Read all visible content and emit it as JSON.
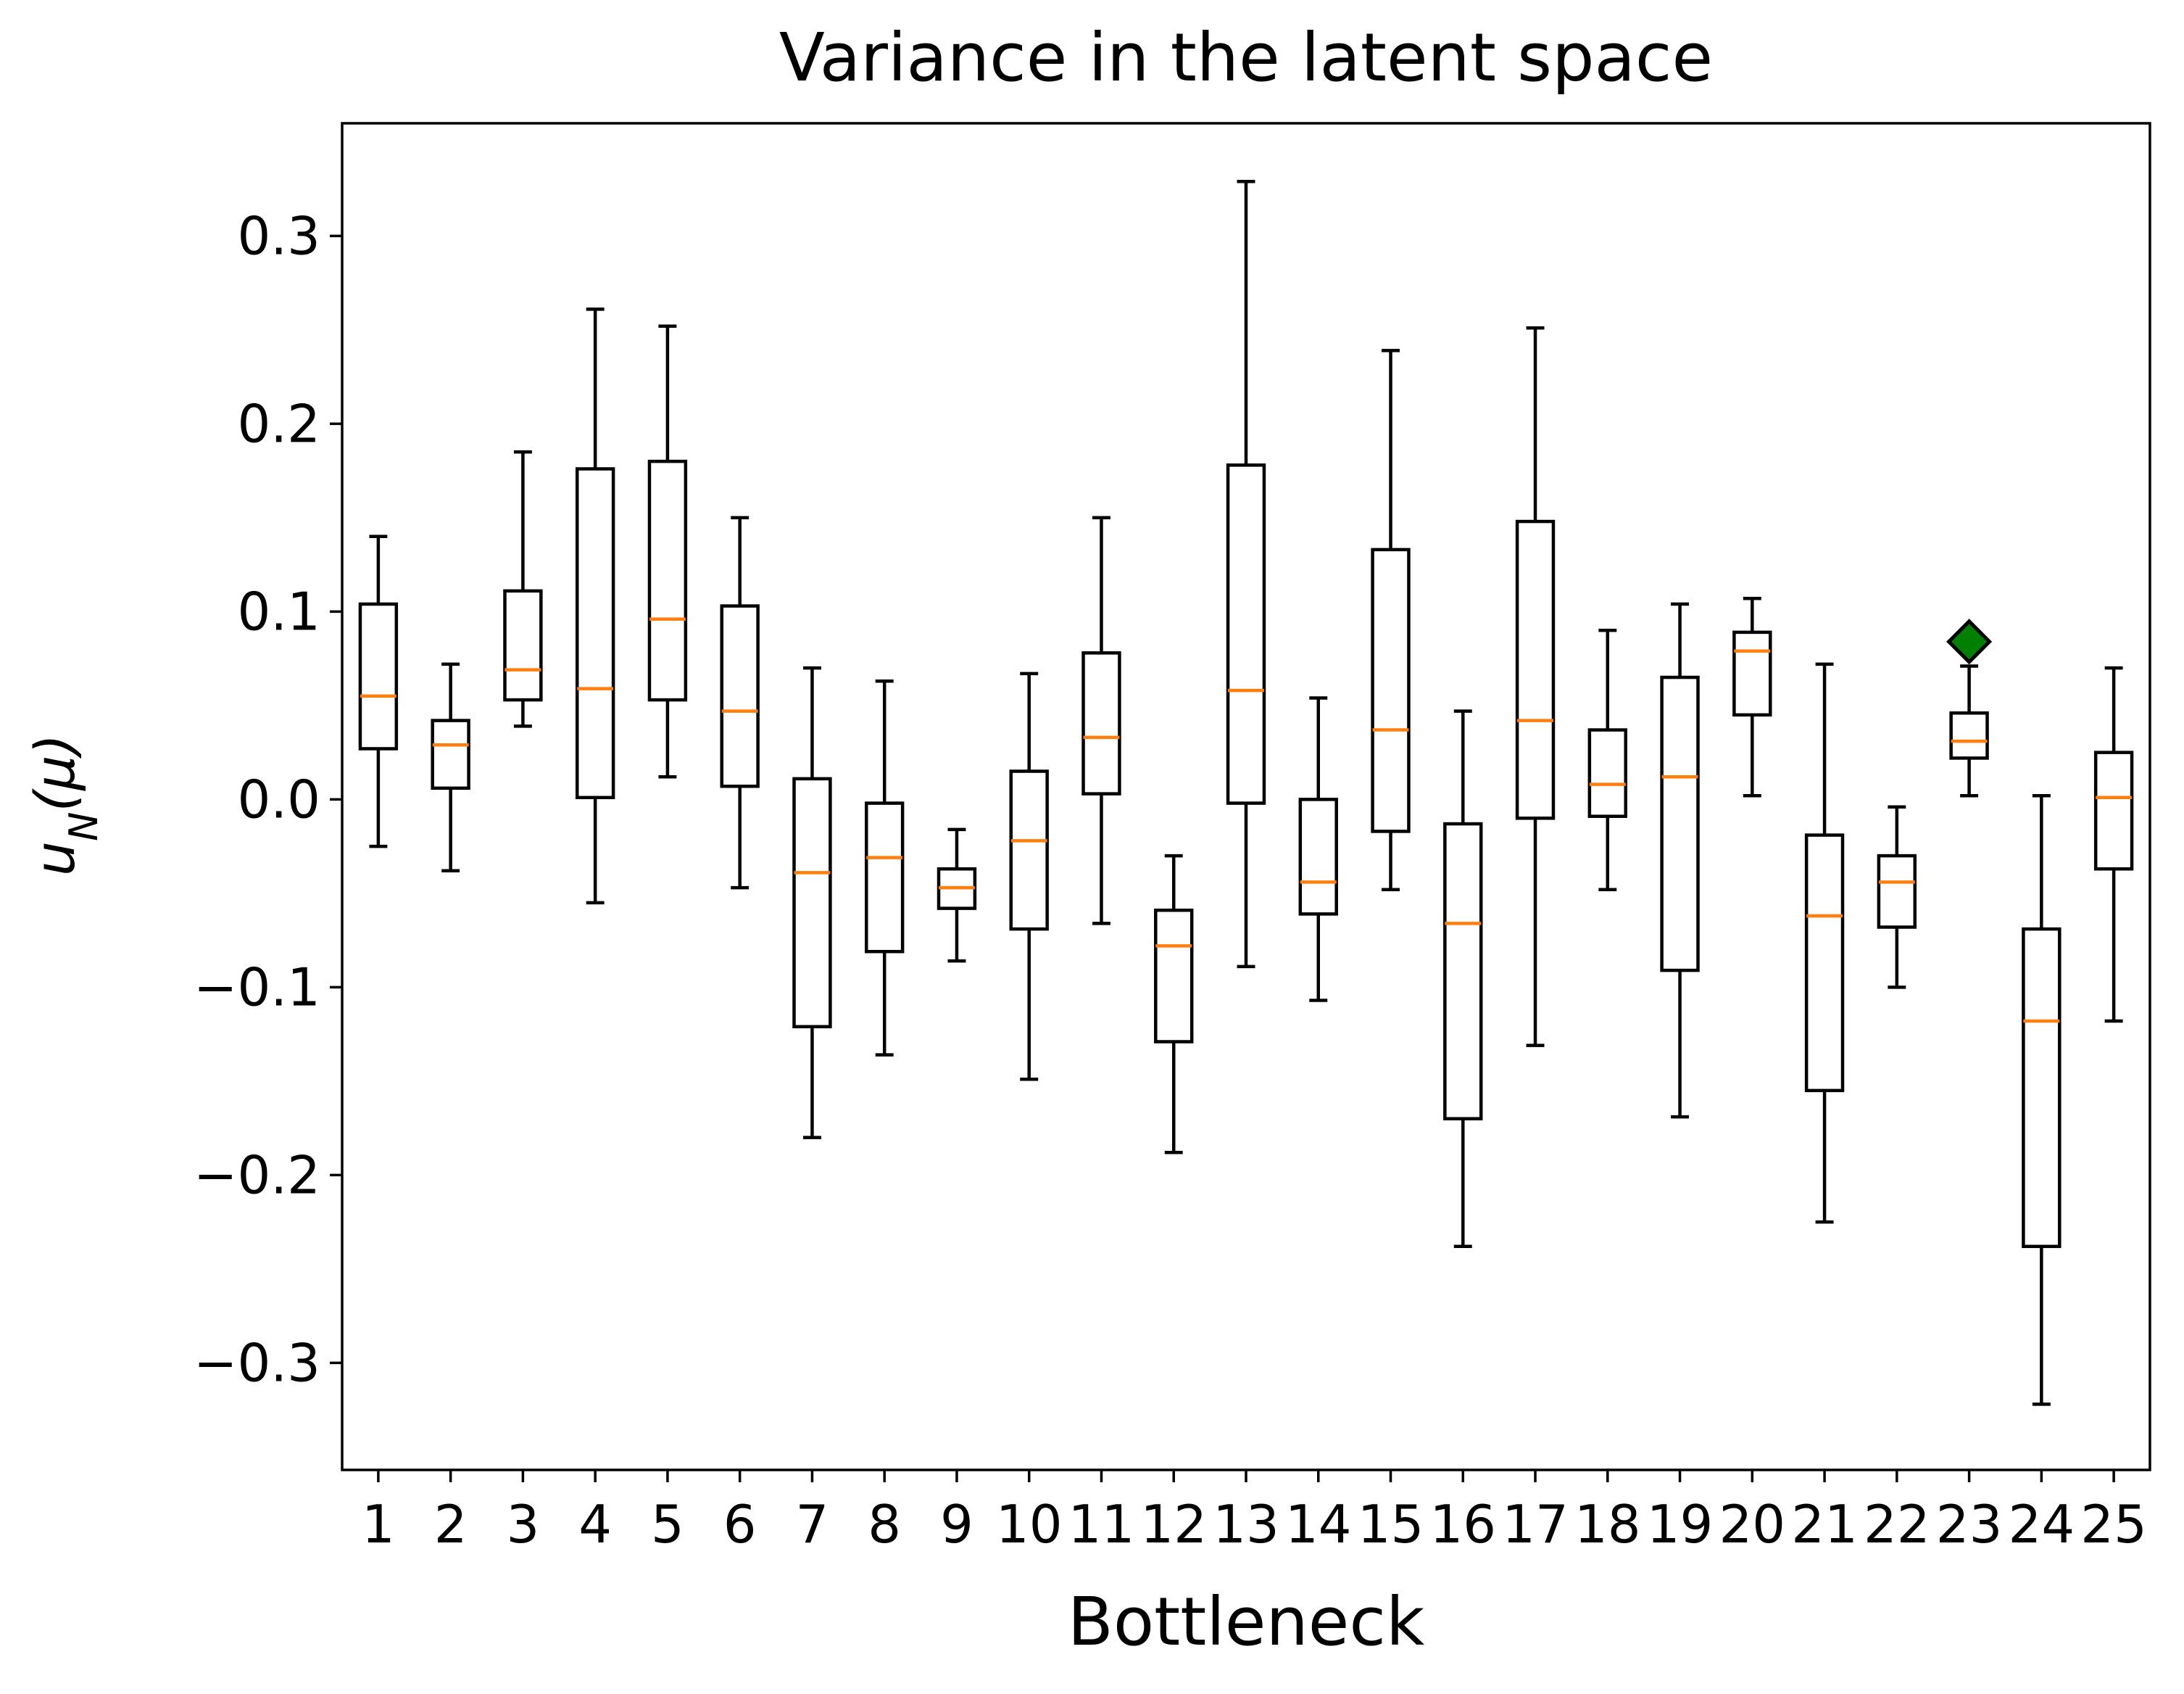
{
  "chart_data": {
    "type": "box",
    "title": "Variance in the latent space",
    "xlabel": "Bottleneck",
    "ylabel": "u_N(μ)",
    "ylabel_main": "u",
    "ylabel_sub": "N",
    "ylabel_rest": "(μ)",
    "ylim": [
      -0.357,
      0.36
    ],
    "yticks": [
      {
        "value": 0.3,
        "label": "0.3"
      },
      {
        "value": 0.2,
        "label": "0.2"
      },
      {
        "value": 0.1,
        "label": "0.1"
      },
      {
        "value": 0.0,
        "label": "0.0"
      },
      {
        "value": -0.1,
        "label": "−0.1"
      },
      {
        "value": -0.2,
        "label": "−0.2"
      },
      {
        "value": -0.3,
        "label": "−0.3"
      }
    ],
    "categories": [
      "1",
      "2",
      "3",
      "4",
      "5",
      "6",
      "7",
      "8",
      "9",
      "10",
      "11",
      "12",
      "13",
      "14",
      "15",
      "16",
      "17",
      "18",
      "19",
      "20",
      "21",
      "22",
      "23",
      "24",
      "25"
    ],
    "boxes": [
      {
        "whislo": -0.025,
        "q1": 0.027,
        "med": 0.055,
        "q3": 0.104,
        "whishi": 0.14
      },
      {
        "whislo": -0.038,
        "q1": 0.006,
        "med": 0.029,
        "q3": 0.042,
        "whishi": 0.072
      },
      {
        "whislo": 0.039,
        "q1": 0.053,
        "med": 0.069,
        "q3": 0.111,
        "whishi": 0.185
      },
      {
        "whislo": -0.055,
        "q1": 0.001,
        "med": 0.059,
        "q3": 0.176,
        "whishi": 0.261
      },
      {
        "whislo": 0.012,
        "q1": 0.053,
        "med": 0.096,
        "q3": 0.18,
        "whishi": 0.252
      },
      {
        "whislo": -0.047,
        "q1": 0.007,
        "med": 0.047,
        "q3": 0.103,
        "whishi": 0.15
      },
      {
        "whislo": -0.18,
        "q1": -0.121,
        "med": -0.039,
        "q3": 0.011,
        "whishi": 0.07
      },
      {
        "whislo": -0.136,
        "q1": -0.081,
        "med": -0.031,
        "q3": -0.002,
        "whishi": 0.063
      },
      {
        "whislo": -0.086,
        "q1": -0.058,
        "med": -0.047,
        "q3": -0.037,
        "whishi": -0.016
      },
      {
        "whislo": -0.149,
        "q1": -0.069,
        "med": -0.022,
        "q3": 0.015,
        "whishi": 0.067
      },
      {
        "whislo": -0.066,
        "q1": 0.003,
        "med": 0.033,
        "q3": 0.078,
        "whishi": 0.15
      },
      {
        "whislo": -0.188,
        "q1": -0.129,
        "med": -0.078,
        "q3": -0.059,
        "whishi": -0.03
      },
      {
        "whislo": -0.089,
        "q1": -0.002,
        "med": 0.058,
        "q3": 0.178,
        "whishi": 0.329
      },
      {
        "whislo": -0.107,
        "q1": -0.061,
        "med": -0.044,
        "q3": 0.0,
        "whishi": 0.054
      },
      {
        "whislo": -0.048,
        "q1": -0.017,
        "med": 0.037,
        "q3": 0.133,
        "whishi": 0.239
      },
      {
        "whislo": -0.238,
        "q1": -0.17,
        "med": -0.066,
        "q3": -0.013,
        "whishi": 0.047
      },
      {
        "whislo": -0.131,
        "q1": -0.01,
        "med": 0.042,
        "q3": 0.148,
        "whishi": 0.251
      },
      {
        "whislo": -0.048,
        "q1": -0.009,
        "med": 0.008,
        "q3": 0.037,
        "whishi": 0.09
      },
      {
        "whislo": -0.169,
        "q1": -0.091,
        "med": 0.012,
        "q3": 0.065,
        "whishi": 0.104
      },
      {
        "whislo": 0.002,
        "q1": 0.045,
        "med": 0.079,
        "q3": 0.089,
        "whishi": 0.107
      },
      {
        "whislo": -0.225,
        "q1": -0.155,
        "med": -0.062,
        "q3": -0.019,
        "whishi": 0.072
      },
      {
        "whislo": -0.1,
        "q1": -0.068,
        "med": -0.044,
        "q3": -0.03,
        "whishi": -0.004
      },
      {
        "whislo": 0.002,
        "q1": 0.022,
        "med": 0.031,
        "q3": 0.046,
        "whishi": 0.071,
        "fliers": [
          0.084
        ]
      },
      {
        "whislo": -0.322,
        "q1": -0.238,
        "med": -0.118,
        "q3": -0.069,
        "whishi": 0.002
      },
      {
        "whislo": -0.118,
        "q1": -0.037,
        "med": 0.001,
        "q3": 0.025,
        "whishi": 0.07
      }
    ],
    "colors": {
      "box": "#000000",
      "median": "#ff7f0e",
      "flier_fill": "#008000",
      "flier_edge": "#000000"
    },
    "grid": false,
    "legend": "none"
  }
}
